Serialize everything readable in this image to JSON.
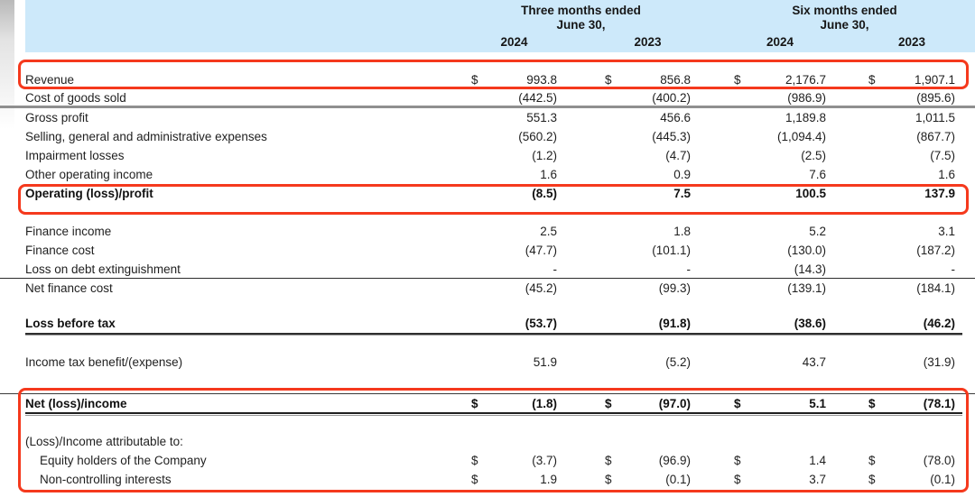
{
  "header": {
    "background_color": "#cde9fa",
    "groups": [
      {
        "title": "Three months ended",
        "subtitle": "June 30,"
      },
      {
        "title": "Six months ended",
        "subtitle": "June 30,"
      }
    ],
    "years": [
      "2024",
      "2023",
      "2024",
      "2023"
    ]
  },
  "highlight": {
    "color": "#f5391d",
    "boxes": [
      "revenue",
      "operating-loss-profit",
      "net-income-attribution"
    ]
  },
  "table": {
    "currency_symbol": "$",
    "rows": [
      {
        "id": "revenue",
        "label": "Revenue",
        "bold": false,
        "indent": false,
        "dollar": true,
        "values": [
          "993.8",
          "856.8",
          "2,176.7",
          "1,907.1"
        ]
      },
      {
        "id": "cost-of-goods-sold",
        "label": "Cost of goods sold",
        "bold": false,
        "indent": false,
        "dollar": false,
        "values": [
          "(442.5)",
          "(400.2)",
          "(986.9)",
          "(895.6)"
        ]
      },
      {
        "id": "gross-profit",
        "label": "Gross profit",
        "bold": false,
        "indent": false,
        "dollar": false,
        "values": [
          "551.3",
          "456.6",
          "1,189.8",
          "1,011.5"
        ]
      },
      {
        "id": "sga-expenses",
        "label": "Selling, general and administrative expenses",
        "bold": false,
        "indent": false,
        "dollar": false,
        "values": [
          "(560.2)",
          "(445.3)",
          "(1,094.4)",
          "(867.7)"
        ]
      },
      {
        "id": "impairment-losses",
        "label": "Impairment losses",
        "bold": false,
        "indent": false,
        "dollar": false,
        "values": [
          "(1.2)",
          "(4.7)",
          "(2.5)",
          "(7.5)"
        ]
      },
      {
        "id": "other-operating-income",
        "label": "Other operating income",
        "bold": false,
        "indent": false,
        "dollar": false,
        "values": [
          "1.6",
          "0.9",
          "7.6",
          "1.6"
        ]
      },
      {
        "id": "operating-loss-profit",
        "label": "Operating (loss)/profit",
        "bold": true,
        "indent": false,
        "dollar": false,
        "values": [
          "(8.5)",
          "7.5",
          "100.5",
          "137.9"
        ]
      },
      {
        "id": "finance-income",
        "label": "Finance income",
        "bold": false,
        "indent": false,
        "dollar": false,
        "values": [
          "2.5",
          "1.8",
          "5.2",
          "3.1"
        ]
      },
      {
        "id": "finance-cost",
        "label": "Finance cost",
        "bold": false,
        "indent": false,
        "dollar": false,
        "values": [
          "(47.7)",
          "(101.1)",
          "(130.0)",
          "(187.2)"
        ]
      },
      {
        "id": "loss-on-debt-extinguishment",
        "label": "Loss on debt extinguishment",
        "bold": false,
        "indent": false,
        "dollar": false,
        "values": [
          "-",
          "-",
          "(14.3)",
          "-"
        ]
      },
      {
        "id": "net-finance-cost",
        "label": "Net finance cost",
        "bold": false,
        "indent": false,
        "dollar": false,
        "values": [
          "(45.2)",
          "(99.3)",
          "(139.1)",
          "(184.1)"
        ]
      },
      {
        "id": "loss-before-tax",
        "label": "Loss before tax",
        "bold": true,
        "indent": false,
        "dollar": false,
        "values": [
          "(53.7)",
          "(91.8)",
          "(38.6)",
          "(46.2)"
        ]
      },
      {
        "id": "income-tax-benefit-expense",
        "label": "Income tax benefit/(expense)",
        "bold": false,
        "indent": false,
        "dollar": false,
        "values": [
          "51.9",
          "(5.2)",
          "43.7",
          "(31.9)"
        ]
      },
      {
        "id": "net-loss-income",
        "label": "Net (loss)/income",
        "bold": true,
        "indent": false,
        "dollar": true,
        "values": [
          "(1.8)",
          "(97.0)",
          "5.1",
          "(78.1)"
        ]
      },
      {
        "id": "attributable-heading",
        "label": "(Loss)/Income attributable to:",
        "bold": false,
        "indent": false,
        "dollar": false,
        "values": null
      },
      {
        "id": "equity-holders",
        "label": "Equity holders of the Company",
        "bold": false,
        "indent": true,
        "dollar": true,
        "values": [
          "(3.7)",
          "(96.9)",
          "1.4",
          "(78.0)"
        ]
      },
      {
        "id": "non-controlling-interests",
        "label": "Non-controlling interests",
        "bold": false,
        "indent": true,
        "dollar": true,
        "values": [
          "1.9",
          "(0.1)",
          "3.7",
          "(0.1)"
        ]
      }
    ]
  }
}
